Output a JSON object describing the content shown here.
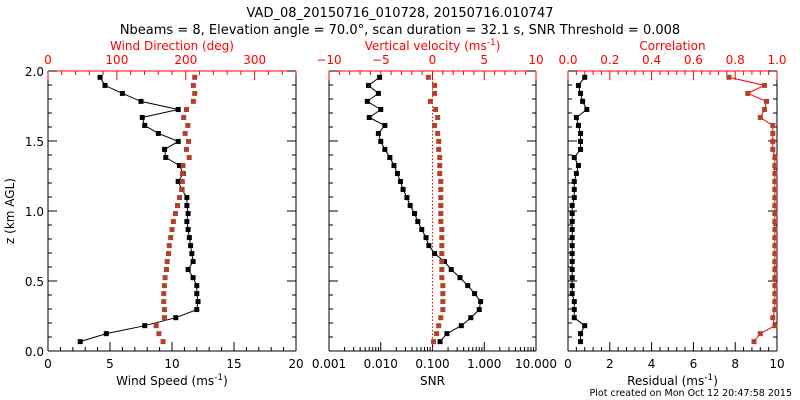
{
  "title_line1": "VAD_08_20150716_010728, 20150716.010747",
  "title_line2": "Nbeams = 8, Elevation angle = 70.0°, scan duration = 32.1 s, SNR Threshold = 0.008",
  "footer": "Plot created on Mon Oct 12 20:47:58 2015",
  "colors": {
    "black_series": "#000000",
    "red_series": "#b5402a",
    "red_axis": "#ff0000"
  },
  "chart_data": [
    {
      "type": "line",
      "ylabel": "z (km AGL)",
      "ylim": [
        0,
        2
      ],
      "yticks": [
        "0.0",
        "0.5",
        "1.0",
        "1.5",
        "2.0"
      ],
      "bottom_axis": {
        "label": "Wind Speed (ms",
        "label_sup": "-1",
        "label_end": ")",
        "range": [
          0,
          20
        ],
        "ticks": [
          "0",
          "5",
          "10",
          "15",
          "20"
        ],
        "scale": "linear"
      },
      "top_axis": {
        "label": "Wind Direction (deg)",
        "range": [
          0,
          360
        ],
        "ticks": [
          "0",
          "100",
          "200",
          "300"
        ],
        "tick_values": [
          0,
          100,
          200,
          300
        ],
        "scale": "linear"
      },
      "z": [
        0.067,
        0.124,
        0.181,
        0.238,
        0.296,
        0.353,
        0.41,
        0.467,
        0.524,
        0.582,
        0.639,
        0.696,
        0.753,
        0.81,
        0.868,
        0.925,
        0.982,
        1.039,
        1.096,
        1.154,
        1.211,
        1.268,
        1.325,
        1.382,
        1.44,
        1.497,
        1.554,
        1.611,
        1.668,
        1.725,
        1.783,
        1.84,
        1.897,
        1.955
      ],
      "series": [
        {
          "name": "Wind Speed",
          "axis": "bottom",
          "color": "black",
          "connected": true,
          "values": [
            2.6,
            4.7,
            7.8,
            10.3,
            12.0,
            12.1,
            12.0,
            12.0,
            11.7,
            11.3,
            11.7,
            11.6,
            11.5,
            11.4,
            11.3,
            11.2,
            11.3,
            11.2,
            11.2,
            10.8,
            10.5,
            10.9,
            10.6,
            9.5,
            9.4,
            10.5,
            8.9,
            7.8,
            7.6,
            10.5,
            7.5,
            6.0,
            4.6,
            4.2
          ]
        },
        {
          "name": "Wind Direction",
          "axis": "top",
          "color": "red",
          "connected": false,
          "values": [
            167,
            161,
            157,
            169,
            169,
            168,
            168,
            169,
            170,
            172,
            173,
            175,
            176,
            178,
            180,
            182,
            185,
            188,
            191,
            194,
            195,
            195,
            196,
            205,
            201,
            204,
            199,
            203,
            197,
            201,
            211,
            213,
            211,
            213
          ]
        }
      ]
    },
    {
      "type": "line",
      "ylim": [
        0,
        2
      ],
      "bottom_axis": {
        "label": "SNR",
        "range": [
          0.001,
          10
        ],
        "ticks": [
          "0.001",
          "0.010",
          "0.100",
          "1.000",
          "10.000"
        ],
        "scale": "log"
      },
      "top_axis": {
        "label": "Vertical velocity (ms",
        "label_sup": "-1",
        "label_end": ")",
        "range": [
          -10,
          10
        ],
        "ticks": [
          "−10",
          "−5",
          "0",
          "5",
          "10"
        ],
        "tick_values": [
          -10,
          -5,
          0,
          5,
          10
        ],
        "scale": "linear",
        "zero_line": true
      },
      "z": [
        0.067,
        0.124,
        0.181,
        0.238,
        0.296,
        0.353,
        0.41,
        0.467,
        0.524,
        0.582,
        0.639,
        0.696,
        0.753,
        0.81,
        0.868,
        0.925,
        0.982,
        1.039,
        1.096,
        1.154,
        1.211,
        1.268,
        1.325,
        1.382,
        1.44,
        1.497,
        1.554,
        1.611,
        1.668,
        1.725,
        1.783,
        1.84,
        1.897,
        1.955
      ],
      "series": [
        {
          "name": "SNR",
          "axis": "bottom",
          "color": "black",
          "connected": true,
          "values": [
            0.14,
            0.19,
            0.36,
            0.55,
            0.8,
            0.85,
            0.65,
            0.48,
            0.34,
            0.23,
            0.17,
            0.11,
            0.085,
            0.075,
            0.062,
            0.052,
            0.045,
            0.037,
            0.032,
            0.027,
            0.024,
            0.021,
            0.018,
            0.015,
            0.012,
            0.01,
            0.009,
            0.012,
            0.006,
            0.01,
            0.0055,
            0.009,
            0.0058,
            0.0095
          ]
        },
        {
          "name": "Vertical velocity",
          "axis": "top",
          "color": "red",
          "connected": false,
          "values": [
            0.1,
            0.4,
            0.6,
            0.8,
            1.0,
            1.0,
            1.0,
            1.0,
            0.9,
            0.9,
            0.9,
            0.9,
            0.9,
            0.9,
            0.9,
            0.8,
            0.8,
            0.8,
            0.8,
            0.8,
            0.8,
            0.7,
            0.7,
            0.7,
            0.6,
            0.6,
            0.5,
            0.2,
            0.5,
            0.3,
            -0.2,
            0.2,
            0.2,
            -0.4
          ]
        }
      ]
    },
    {
      "type": "line",
      "ylim": [
        0,
        2
      ],
      "bottom_axis": {
        "label": "Residual (ms",
        "label_sup": "-1",
        "label_end": ")",
        "range": [
          0,
          10
        ],
        "ticks": [
          "0",
          "2",
          "4",
          "6",
          "8",
          "10"
        ],
        "scale": "linear"
      },
      "top_axis": {
        "label": "Correlation",
        "range": [
          0,
          1
        ],
        "ticks": [
          "0.0",
          "0.2",
          "0.4",
          "0.6",
          "0.8",
          "1.0"
        ],
        "tick_values": [
          0,
          0.2,
          0.4,
          0.6,
          0.8,
          1.0
        ],
        "scale": "linear"
      },
      "z": [
        0.067,
        0.124,
        0.181,
        0.238,
        0.296,
        0.353,
        0.41,
        0.467,
        0.524,
        0.582,
        0.639,
        0.696,
        0.753,
        0.81,
        0.868,
        0.925,
        0.982,
        1.039,
        1.096,
        1.154,
        1.211,
        1.268,
        1.325,
        1.382,
        1.44,
        1.497,
        1.554,
        1.611,
        1.668,
        1.725,
        1.783,
        1.84,
        1.897,
        1.955
      ],
      "series": [
        {
          "name": "Residual",
          "axis": "bottom",
          "color": "black",
          "connected": true,
          "values": [
            0.6,
            0.6,
            0.8,
            0.3,
            0.3,
            0.3,
            0.2,
            0.2,
            0.2,
            0.2,
            0.2,
            0.2,
            0.2,
            0.2,
            0.2,
            0.2,
            0.2,
            0.2,
            0.3,
            0.3,
            0.3,
            0.4,
            0.5,
            0.3,
            0.6,
            0.6,
            0.6,
            0.5,
            0.4,
            0.9,
            0.7,
            0.6,
            0.5,
            0.8
          ]
        },
        {
          "name": "Correlation",
          "axis": "top",
          "color": "red",
          "connected": true,
          "values": [
            0.89,
            0.92,
            0.99,
            0.98,
            0.99,
            0.99,
            0.99,
            0.99,
            0.99,
            0.99,
            0.99,
            0.99,
            0.99,
            0.99,
            0.99,
            0.99,
            0.99,
            0.99,
            0.99,
            0.99,
            0.99,
            0.99,
            0.99,
            0.99,
            0.98,
            0.98,
            0.98,
            0.98,
            0.92,
            0.94,
            0.95,
            0.86,
            0.94,
            0.77
          ]
        }
      ]
    }
  ]
}
